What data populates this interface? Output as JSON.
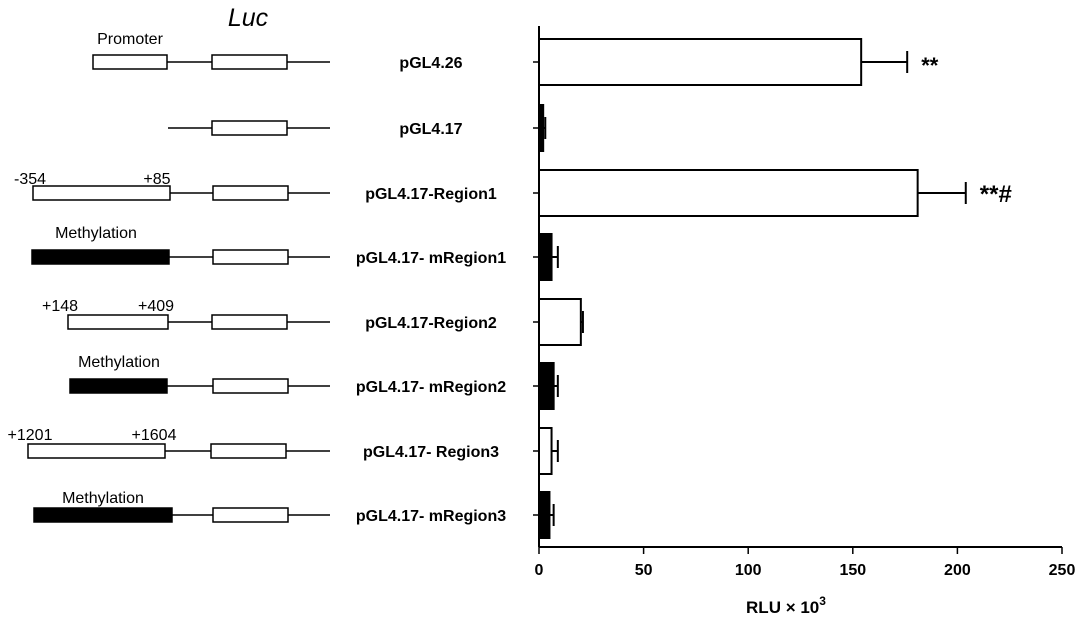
{
  "colors": {
    "filled": "#000000",
    "open": "#ffffff",
    "stroke": "#000000"
  },
  "diagram": {
    "luc_label": "Luc",
    "rows": [
      {
        "label": "pGL4.26",
        "insert": "open",
        "insert_label": "Promoter",
        "left_num": "",
        "right_num": ""
      },
      {
        "label": "pGL4.17",
        "insert": "none",
        "insert_label": "",
        "left_num": "",
        "right_num": ""
      },
      {
        "label": "pGL4.17-Region1",
        "insert": "open",
        "insert_label": "",
        "left_num": "-354",
        "right_num": "+85"
      },
      {
        "label": "pGL4.17- mRegion1",
        "insert": "filled",
        "insert_label": "Methylation",
        "left_num": "",
        "right_num": ""
      },
      {
        "label": "pGL4.17-Region2",
        "insert": "open",
        "insert_label": "",
        "left_num": "+148",
        "right_num": "+409"
      },
      {
        "label": "pGL4.17- mRegion2",
        "insert": "filled",
        "insert_label": "Methylation",
        "left_num": "",
        "right_num": ""
      },
      {
        "label": "pGL4.17- Region3",
        "insert": "open",
        "insert_label": "",
        "left_num": "+1201",
        "right_num": "+1604"
      },
      {
        "label": "pGL4.17- mRegion3",
        "insert": "filled",
        "insert_label": "Methylation",
        "left_num": "",
        "right_num": ""
      }
    ]
  },
  "chart_data": {
    "type": "bar",
    "orientation": "horizontal",
    "categories": [
      "pGL4.26",
      "pGL4.17",
      "pGL4.17-Region1",
      "pGL4.17- mRegion1",
      "pGL4.17-Region2",
      "pGL4.17- mRegion2",
      "pGL4.17- Region3",
      "pGL4.17- mRegion3"
    ],
    "values": [
      154,
      2,
      181,
      6,
      20,
      7,
      6,
      5
    ],
    "errors": [
      22,
      1,
      23,
      3,
      1,
      2,
      3,
      2
    ],
    "fills": [
      "open",
      "filled",
      "open",
      "filled",
      "open",
      "filled",
      "open",
      "filled"
    ],
    "annotations": [
      "**",
      "",
      "**#",
      "",
      "",
      "",
      "",
      ""
    ],
    "xlabel_base": "RLU × 10",
    "xlabel_sup": "3",
    "xlim": [
      0,
      250
    ],
    "xticks": [
      "0",
      "50",
      "100",
      "150",
      "200",
      "250"
    ],
    "grid": false
  }
}
